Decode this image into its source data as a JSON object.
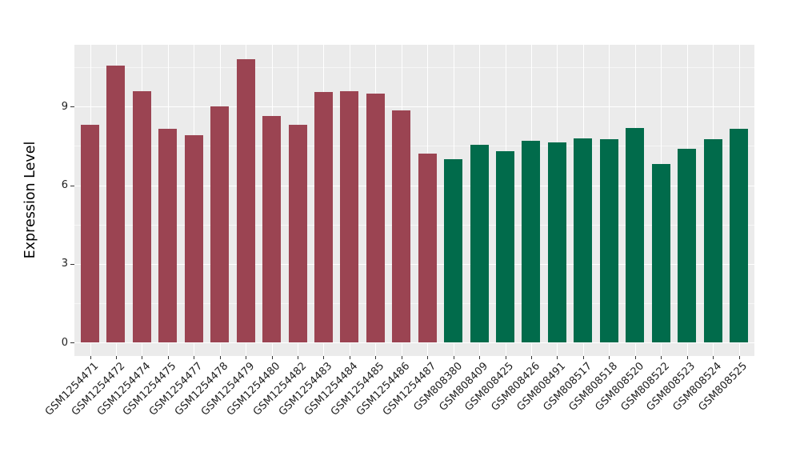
{
  "chart_data": {
    "type": "bar",
    "title": "",
    "xlabel": "",
    "ylabel": "Expression Level",
    "y_ticks": [
      0,
      3,
      6,
      9
    ],
    "y_minor_gridlines": [
      1.5,
      4.5,
      7.5,
      10.5
    ],
    "ylim": [
      -0.54,
      11.32
    ],
    "grid": "white major and minor gridlines on gray panel, vertical gridlines at each category",
    "legend_position": "none",
    "panel_bg": "#EBEBEB",
    "colors": {
      "group1": "#9B4452",
      "group2": "#016B4B"
    },
    "bars": [
      {
        "label": "GSM1254471",
        "value": 8.3,
        "group": "group1"
      },
      {
        "label": "GSM1254472",
        "value": 10.55,
        "group": "group1"
      },
      {
        "label": "GSM1254474",
        "value": 9.6,
        "group": "group1"
      },
      {
        "label": "GSM1254475",
        "value": 8.15,
        "group": "group1"
      },
      {
        "label": "GSM1254477",
        "value": 7.9,
        "group": "group1"
      },
      {
        "label": "GSM1254478",
        "value": 9.0,
        "group": "group1"
      },
      {
        "label": "GSM1254479",
        "value": 10.8,
        "group": "group1"
      },
      {
        "label": "GSM1254480",
        "value": 8.65,
        "group": "group1"
      },
      {
        "label": "GSM1254482",
        "value": 8.3,
        "group": "group1"
      },
      {
        "label": "GSM1254483",
        "value": 9.55,
        "group": "group1"
      },
      {
        "label": "GSM1254484",
        "value": 9.6,
        "group": "group1"
      },
      {
        "label": "GSM1254485",
        "value": 9.5,
        "group": "group1"
      },
      {
        "label": "GSM1254486",
        "value": 8.85,
        "group": "group1"
      },
      {
        "label": "GSM1254487",
        "value": 7.2,
        "group": "group1"
      },
      {
        "label": "GSM808380",
        "value": 7.0,
        "group": "group2"
      },
      {
        "label": "GSM808409",
        "value": 7.55,
        "group": "group2"
      },
      {
        "label": "GSM808425",
        "value": 7.3,
        "group": "group2"
      },
      {
        "label": "GSM808426",
        "value": 7.7,
        "group": "group2"
      },
      {
        "label": "GSM808491",
        "value": 7.65,
        "group": "group2"
      },
      {
        "label": "GSM808517",
        "value": 7.8,
        "group": "group2"
      },
      {
        "label": "GSM808518",
        "value": 7.75,
        "group": "group2"
      },
      {
        "label": "GSM808520",
        "value": 8.2,
        "group": "group2"
      },
      {
        "label": "GSM808522",
        "value": 6.8,
        "group": "group2"
      },
      {
        "label": "GSM808523",
        "value": 7.4,
        "group": "group2"
      },
      {
        "label": "GSM808524",
        "value": 7.75,
        "group": "group2"
      },
      {
        "label": "GSM808525",
        "value": 8.15,
        "group": "group2"
      }
    ]
  }
}
